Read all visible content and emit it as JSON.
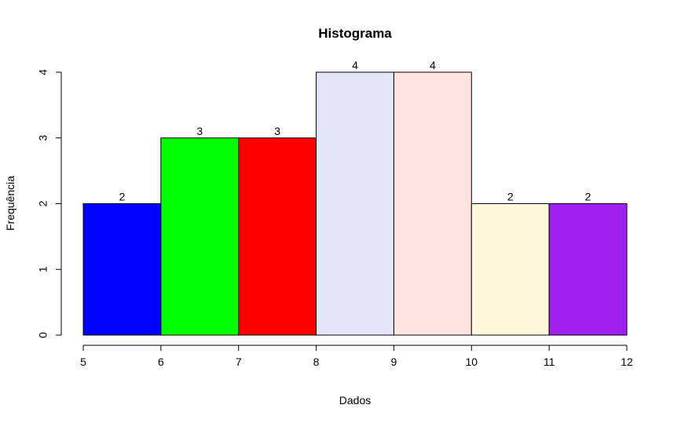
{
  "chart_data": {
    "type": "bar",
    "title": "Histograma",
    "xlabel": "Dados",
    "ylabel": "Frequência",
    "bins": [
      {
        "from": 5,
        "to": 6,
        "count": 2,
        "color": "#0000FF"
      },
      {
        "from": 6,
        "to": 7,
        "count": 3,
        "color": "#00FF00"
      },
      {
        "from": 7,
        "to": 8,
        "count": 3,
        "color": "#FF0000"
      },
      {
        "from": 8,
        "to": 9,
        "count": 4,
        "color": "#E6E6FA"
      },
      {
        "from": 9,
        "to": 10,
        "count": 4,
        "color": "#FFE4E1"
      },
      {
        "from": 10,
        "to": 11,
        "count": 2,
        "color": "#FFF8DC"
      },
      {
        "from": 11,
        "to": 12,
        "count": 2,
        "color": "#A020F0"
      }
    ],
    "xlim": [
      5,
      12
    ],
    "ylim": [
      0,
      4
    ],
    "xticks": [
      5,
      6,
      7,
      8,
      9,
      10,
      11,
      12
    ],
    "yticks": [
      0,
      1,
      2,
      3,
      4
    ],
    "grid": false,
    "legend": "none"
  }
}
